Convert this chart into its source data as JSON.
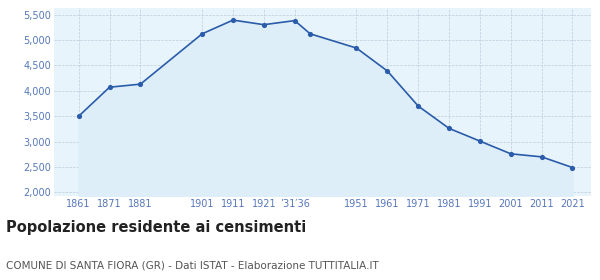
{
  "years": [
    1861,
    1871,
    1881,
    1901,
    1911,
    1921,
    1931,
    1936,
    1951,
    1961,
    1971,
    1981,
    1991,
    2001,
    2011,
    2021
  ],
  "population": [
    3500,
    4070,
    4130,
    5120,
    5390,
    5300,
    5380,
    5120,
    4840,
    4390,
    3700,
    3260,
    3010,
    2760,
    2700,
    2490
  ],
  "y_ticks": [
    2000,
    2500,
    3000,
    3500,
    4000,
    4500,
    5000,
    5500
  ],
  "ylim": [
    1930,
    5620
  ],
  "xlim": [
    1853,
    2027
  ],
  "x_tick_positions": [
    1861,
    1871,
    1881,
    1901,
    1911,
    1921,
    1931,
    1951,
    1961,
    1971,
    1981,
    1991,
    2001,
    2011,
    2021
  ],
  "x_tick_labels": [
    "1861",
    "1871",
    "1881",
    "1901",
    "1911",
    "1921",
    "’31′36",
    "1951",
    "1961",
    "1971",
    "1981",
    "1991",
    "2001",
    "2011",
    "2021"
  ],
  "line_color": "#2a5caa",
  "fill_color": "#ddeef8",
  "marker_color": "#2a5caa",
  "background_color": "#ffffff",
  "plot_bg_color": "#e8f4fb",
  "grid_color": "#bbccdd",
  "title": "Popolazione residente ai censimenti",
  "subtitle": "COMUNE DI SANTA FIORA (GR) - Dati ISTAT - Elaborazione TUTTITALIA.IT",
  "title_fontsize": 10.5,
  "subtitle_fontsize": 7.5,
  "title_color": "#222222",
  "subtitle_color": "#555555",
  "tick_label_color": "#5577bb",
  "tick_fontsize": 7,
  "y_tick_fontsize": 7
}
